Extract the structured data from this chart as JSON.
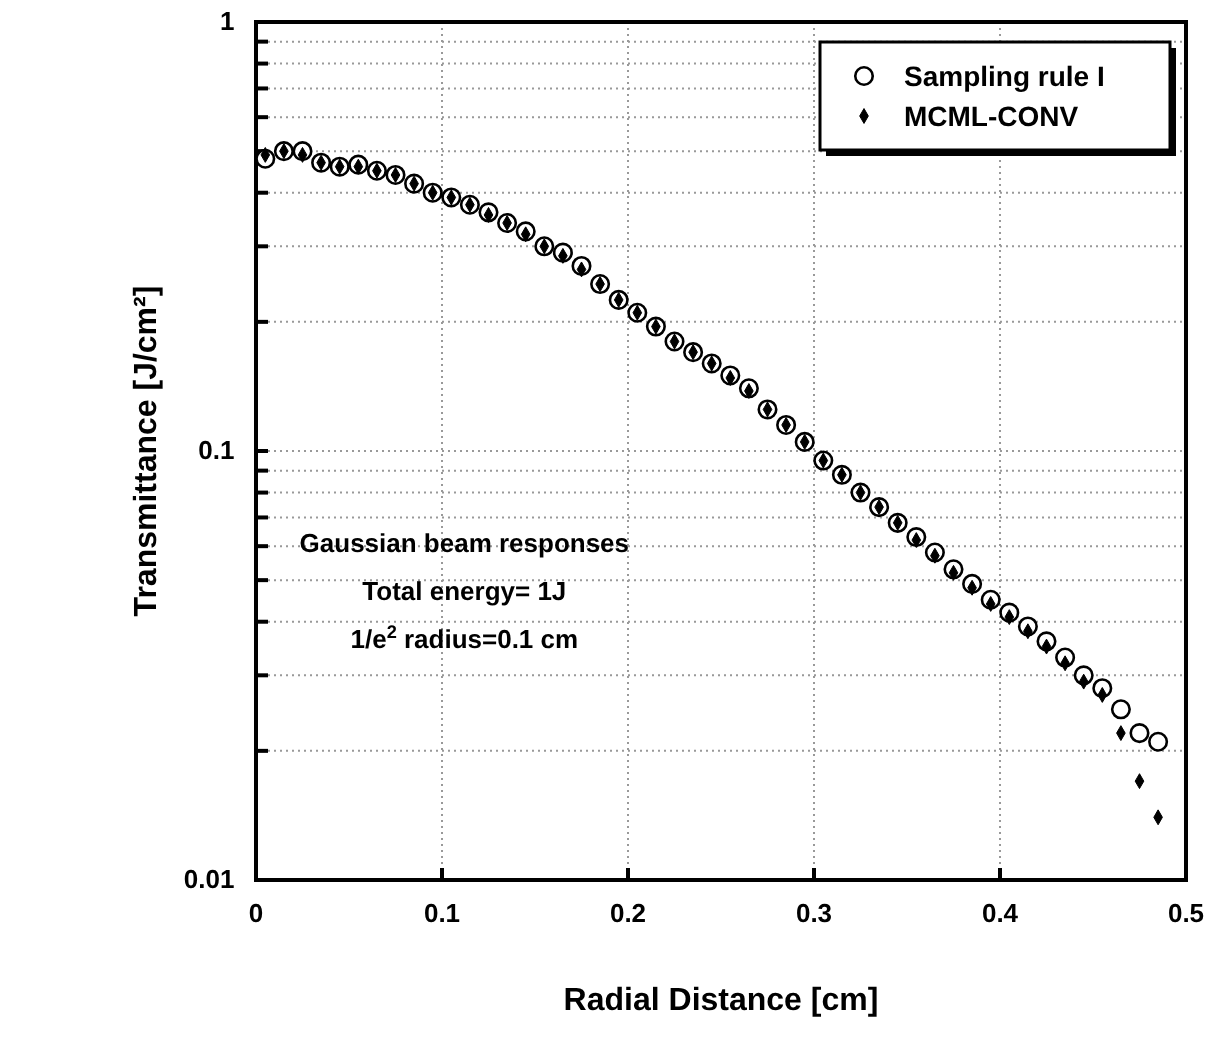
{
  "chart_data": {
    "type": "scatter",
    "xlabel": "Radial Distance [cm]",
    "ylabel": "Transmittance [J/cm²]",
    "log": "y",
    "grid": true,
    "legend": "top right",
    "xlim": [
      0,
      0.5
    ],
    "xticks": [
      0,
      0.1,
      0.2,
      0.3,
      0.4,
      0.5
    ],
    "ylim": [
      0.01,
      1
    ],
    "yticks": [
      0.01,
      {
        "value": 0.02,
        "label": null
      },
      {
        "value": 0.03,
        "label": null
      },
      {
        "value": 0.04,
        "label": null
      },
      {
        "value": 0.05,
        "label": null
      },
      {
        "value": 0.06,
        "label": null
      },
      {
        "value": 0.07,
        "label": null
      },
      {
        "value": 0.08,
        "label": null
      },
      {
        "value": 0.09,
        "label": null
      },
      0.1,
      {
        "value": 0.2,
        "label": null
      },
      {
        "value": 0.3,
        "label": null
      },
      {
        "value": 0.4,
        "label": null
      },
      {
        "value": 0.5,
        "label": null
      },
      {
        "value": 0.6,
        "label": null
      },
      {
        "value": 0.7,
        "label": null
      },
      {
        "value": 0.8,
        "label": null
      },
      {
        "value": 0.9,
        "label": null
      },
      1
    ],
    "annotations": [
      "Gaussian beam responses",
      "Total energy= 1J",
      "1/e$^{2}$ radius=0.1 cm"
    ],
    "series": [
      {
        "name": "Sampling rule I",
        "color": "#000000",
        "marker": "circle",
        "x": [
          0.005,
          0.015,
          0.025,
          0.035,
          0.045,
          0.055,
          0.065,
          0.075,
          0.085,
          0.095,
          0.105,
          0.115,
          0.125,
          0.135,
          0.145,
          0.155,
          0.165,
          0.175,
          0.185,
          0.195,
          0.205,
          0.215,
          0.225,
          0.235,
          0.245,
          0.255,
          0.265,
          0.275,
          0.285,
          0.295,
          0.305,
          0.315,
          0.325,
          0.335,
          0.345,
          0.355,
          0.365,
          0.375,
          0.385,
          0.395,
          0.405,
          0.415,
          0.425,
          0.435,
          0.445,
          0.455,
          0.465,
          0.475,
          0.485
        ],
        "values": [
          0.48,
          0.5,
          0.5,
          0.47,
          0.46,
          0.465,
          0.45,
          0.44,
          0.42,
          0.4,
          0.39,
          0.375,
          0.36,
          0.34,
          0.325,
          0.3,
          0.29,
          0.27,
          0.245,
          0.225,
          0.21,
          0.195,
          0.18,
          0.17,
          0.16,
          0.15,
          0.14,
          0.125,
          0.115,
          0.105,
          0.095,
          0.088,
          0.08,
          0.074,
          0.068,
          0.063,
          0.058,
          0.053,
          0.049,
          0.045,
          0.042,
          0.039,
          0.036,
          0.033,
          0.03,
          0.028,
          0.025,
          0.022,
          0.021
        ]
      },
      {
        "name": "MCML-CONV",
        "color": "#000000",
        "marker": "diamond",
        "x": [
          0.005,
          0.015,
          0.025,
          0.035,
          0.045,
          0.055,
          0.065,
          0.075,
          0.085,
          0.095,
          0.105,
          0.115,
          0.125,
          0.135,
          0.145,
          0.155,
          0.165,
          0.175,
          0.185,
          0.195,
          0.205,
          0.215,
          0.225,
          0.235,
          0.245,
          0.255,
          0.265,
          0.275,
          0.285,
          0.295,
          0.305,
          0.315,
          0.325,
          0.335,
          0.345,
          0.355,
          0.365,
          0.375,
          0.385,
          0.395,
          0.405,
          0.415,
          0.425,
          0.435,
          0.445,
          0.455,
          0.465,
          0.475,
          0.485
        ],
        "values": [
          0.49,
          0.5,
          0.49,
          0.47,
          0.46,
          0.46,
          0.45,
          0.44,
          0.42,
          0.4,
          0.39,
          0.375,
          0.355,
          0.34,
          0.32,
          0.3,
          0.285,
          0.265,
          0.245,
          0.225,
          0.21,
          0.195,
          0.18,
          0.17,
          0.16,
          0.148,
          0.138,
          0.125,
          0.115,
          0.105,
          0.095,
          0.088,
          0.08,
          0.074,
          0.068,
          0.062,
          0.057,
          0.052,
          0.048,
          0.044,
          0.041,
          0.038,
          0.035,
          0.032,
          0.029,
          0.027,
          0.022,
          0.017,
          0.014
        ]
      }
    ]
  }
}
